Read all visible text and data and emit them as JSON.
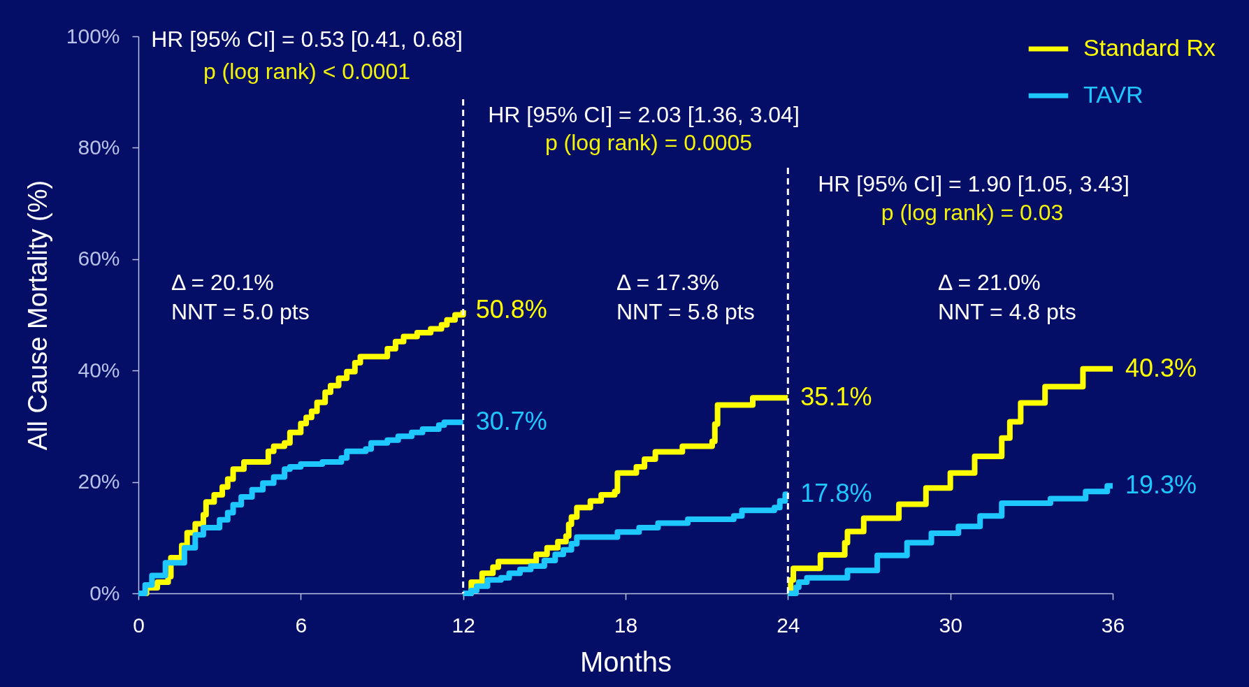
{
  "chart_data": {
    "type": "step",
    "xlabel": "Months",
    "ylabel": "All Cause Mortality (%)",
    "xlim": [
      0,
      36
    ],
    "xticks": [
      0,
      6,
      12,
      18,
      24,
      30,
      36
    ],
    "ylim": [
      0,
      100
    ],
    "yticks": [
      {
        "value": 0,
        "label": "0%"
      },
      {
        "value": 20,
        "label": "20%"
      },
      {
        "value": 40,
        "label": "40%"
      },
      {
        "value": 60,
        "label": "60%"
      },
      {
        "value": 80,
        "label": "80%"
      },
      {
        "value": 100,
        "label": "100%"
      }
    ],
    "legend": "top right",
    "series": [
      {
        "name": "Standard Rx",
        "color": "#ffff00",
        "x": [
          0,
          0.3,
          0.7,
          1.1,
          1.2,
          1.6,
          1.8,
          2.1,
          2.4,
          2.5,
          2.8,
          3.1,
          3.3,
          3.5,
          3.9,
          4.8,
          5.0,
          5.4,
          5.6,
          6.0,
          6.2,
          6.4,
          6.6,
          6.9,
          7.1,
          7.4,
          7.7,
          8.0,
          8.2,
          9.2,
          9.5,
          9.8,
          10.3,
          10.8,
          11.2,
          11.4,
          11.7,
          12,
          null,
          12,
          12.3,
          12.7,
          13.1,
          13.3,
          14.7,
          15.1,
          15.5,
          15.8,
          15.9,
          16.0,
          16.2,
          16.7,
          17.1,
          17.6,
          17.7,
          18.4,
          18.7,
          19.1,
          20.1,
          21.2,
          21.3,
          21.4,
          22.7,
          24,
          null,
          24,
          24.1,
          24.2,
          25.2,
          26.1,
          26.2,
          26.8,
          28.1,
          29.1,
          30.0,
          30.9,
          31.9,
          32.2,
          32.6,
          33.5,
          34.9,
          36
        ],
        "values": [
          0,
          1.0,
          2.0,
          3.0,
          6.4,
          8.6,
          10.9,
          12.5,
          14.1,
          16.4,
          17.7,
          19.1,
          20.5,
          22.3,
          23.6,
          25.5,
          26.4,
          27.0,
          28.9,
          30.5,
          31.6,
          32.7,
          34.3,
          36.1,
          37.3,
          38.6,
          39.8,
          41.4,
          42.5,
          43.9,
          45.2,
          46.1,
          46.8,
          47.5,
          48.2,
          49.1,
          50.0,
          50.8,
          null,
          0,
          2.0,
          3.6,
          4.7,
          5.7,
          7.0,
          8.2,
          9.3,
          10.3,
          12.4,
          13.7,
          15.4,
          16.6,
          17.7,
          18.3,
          21.6,
          22.7,
          24.1,
          25.4,
          26.4,
          27.3,
          30.4,
          33.8,
          35.1,
          35.1,
          null,
          0,
          2.4,
          4.5,
          6.9,
          9.1,
          11.1,
          13.5,
          16.0,
          18.9,
          21.6,
          24.6,
          27.9,
          30.8,
          34.2,
          37.1,
          40.3,
          40.3
        ],
        "value_labels": [
          null,
          null,
          null,
          null,
          null,
          null,
          null,
          null,
          null,
          null,
          null,
          null,
          null,
          null,
          null,
          null,
          null,
          null,
          null,
          null,
          null,
          null,
          null,
          null,
          null,
          null,
          null,
          null,
          null,
          null,
          null,
          null,
          null,
          null,
          null,
          null,
          null,
          "50.8%",
          null,
          null,
          null,
          null,
          null,
          null,
          null,
          null,
          null,
          null,
          null,
          null,
          null,
          null,
          null,
          null,
          null,
          null,
          null,
          null,
          null,
          null,
          null,
          null,
          null,
          "35.1%",
          null,
          null,
          null,
          null,
          null,
          null,
          null,
          null,
          null,
          null,
          null,
          null,
          null,
          null,
          null,
          null,
          null,
          "40.3%"
        ]
      },
      {
        "name": "TAVR",
        "color": "#1ec8ff",
        "x": [
          0,
          0.25,
          0.5,
          1.0,
          1.7,
          2.1,
          2.4,
          3.0,
          3.3,
          3.5,
          3.8,
          4.2,
          4.6,
          5.0,
          5.4,
          5.6,
          6.0,
          6.8,
          7.5,
          7.7,
          8.4,
          8.6,
          9.2,
          9.6,
          10.1,
          10.5,
          11.1,
          11.3,
          12,
          null,
          12,
          12.3,
          12.5,
          12.9,
          13.4,
          13.7,
          14.1,
          14.5,
          15.0,
          15.4,
          15.7,
          16.0,
          16.2,
          17.7,
          18.5,
          19.2,
          20.3,
          22.0,
          22.3,
          23.5,
          23.7,
          23.9,
          24,
          null,
          24,
          24.3,
          24.4,
          24.7,
          26.2,
          27.3,
          28.4,
          29.3,
          30.3,
          31.1,
          31.9,
          33.7,
          35.0,
          35.8,
          36
        ],
        "values": [
          0,
          1.5,
          3.2,
          5.5,
          8.2,
          10.5,
          11.8,
          13.2,
          14.5,
          15.9,
          17.3,
          18.6,
          19.8,
          20.9,
          22.3,
          22.7,
          23.2,
          23.6,
          24.3,
          25.5,
          25.9,
          27.0,
          27.5,
          28.2,
          28.9,
          29.5,
          30.2,
          30.7,
          30.7,
          null,
          0,
          0.5,
          1.3,
          2.4,
          2.8,
          3.6,
          4.3,
          4.9,
          5.9,
          7.0,
          7.8,
          8.9,
          10.1,
          11.0,
          11.8,
          12.6,
          13.3,
          13.9,
          14.9,
          15.4,
          16.6,
          17.8,
          17.8,
          null,
          0,
          1.1,
          2.0,
          2.8,
          4.1,
          6.8,
          9.1,
          10.8,
          12.0,
          13.9,
          16.2,
          17.0,
          18.3,
          19.3,
          19.3
        ],
        "value_labels": [
          null,
          null,
          null,
          null,
          null,
          null,
          null,
          null,
          null,
          null,
          null,
          null,
          null,
          null,
          null,
          null,
          null,
          null,
          null,
          null,
          null,
          null,
          null,
          null,
          null,
          null,
          null,
          null,
          "30.7%",
          null,
          null,
          null,
          null,
          null,
          null,
          null,
          null,
          null,
          null,
          null,
          null,
          null,
          null,
          null,
          null,
          null,
          null,
          null,
          null,
          null,
          null,
          null,
          "17.8%",
          null,
          null,
          null,
          null,
          null,
          null,
          null,
          null,
          null,
          null,
          null,
          null,
          null,
          null,
          null,
          "19.3%"
        ]
      }
    ],
    "ref_lines": [
      {
        "axis": "x",
        "value": 12,
        "color": "#ffffff",
        "line_style": "dashed"
      },
      {
        "axis": "x",
        "value": 24,
        "color": "#ffffff",
        "line_style": "dashed"
      }
    ],
    "annotations": [
      "HR [95% CI] = 0.53 [0.41, 0.68]",
      "p (log rank) < 0.0001",
      "HR [95% CI] = 2.03 [1.36, 3.04]",
      "p (log rank) = 0.0005",
      "HR [95% CI] = 1.90 [1.05, 3.43]",
      "p (log rank) = 0.03",
      "Δ = 20.1%",
      "NNT = 5.0 pts",
      "Δ = 17.3%",
      "NNT = 5.8 pts",
      "Δ = 21.0%",
      "NNT = 4.8 pts"
    ]
  }
}
